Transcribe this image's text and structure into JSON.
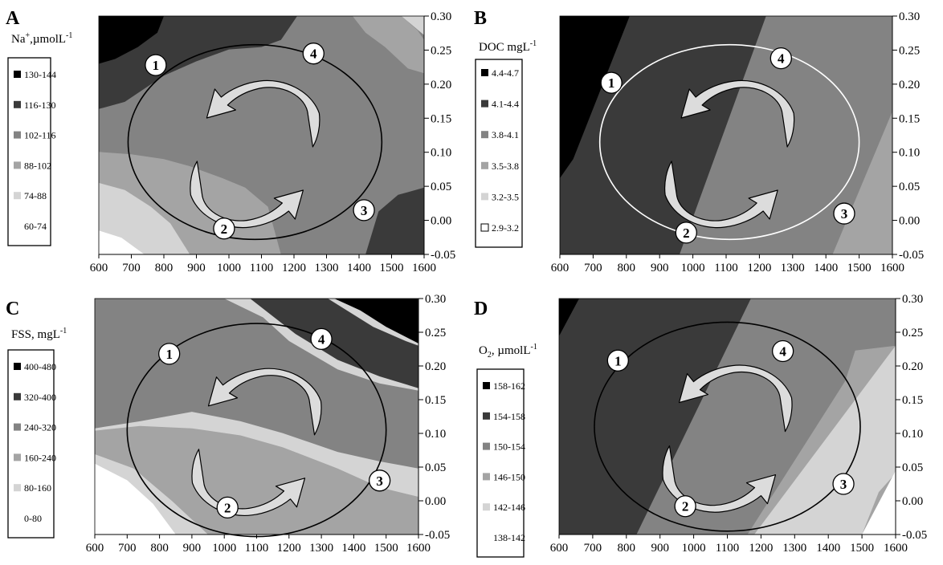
{
  "figure": {
    "background": "#ffffff"
  },
  "colors": {
    "band": [
      "#ffffff",
      "#d4d4d4",
      "#a4a4a4",
      "#838383",
      "#3a3a3a",
      "#000000"
    ],
    "arrow_fill": "#dcdcdc",
    "marker_fill": "#ffffff"
  },
  "chart_data": [
    {
      "type": "contour",
      "panel_letter": "A",
      "legend_title": "Na+,µmolL-1",
      "legend_title_base": "Na",
      "legend_title_sup": "+",
      "legend_title_mid": ",µmolL",
      "legend_title_sup2": "-1",
      "legend_entries": [
        "130-144",
        "116-130",
        "102-116",
        "88-102",
        "74-88",
        "60-74"
      ],
      "x_ticks": [
        "600",
        "700",
        "800",
        "900",
        "1000",
        "1100",
        "1200",
        "1300",
        "1400",
        "1500",
        "1600"
      ],
      "y_ticks": [
        "0.30",
        "0.25",
        "0.20",
        "0.15",
        "0.10",
        "0.05",
        "0.00",
        "-0.05"
      ],
      "xlim": [
        600,
        1600
      ],
      "ylim": [
        -0.05,
        0.3
      ],
      "y_axis_side": "right",
      "grid": false,
      "loop": {
        "center_x": 1080,
        "center_y": 0.115,
        "radius_x": 390,
        "radius_y": 0.143,
        "color": "#000000"
      },
      "markers": [
        {
          "label": "1",
          "x": 775,
          "y": 0.228
        },
        {
          "label": "4",
          "x": 1260,
          "y": 0.245
        },
        {
          "label": "3",
          "x": 1415,
          "y": 0.015
        },
        {
          "label": "2",
          "x": 985,
          "y": -0.012
        }
      ]
    },
    {
      "type": "contour",
      "panel_letter": "B",
      "legend_title": "DOC mgL-1",
      "legend_title_base": "DOC mgL",
      "legend_title_sup": "-1",
      "legend_entries": [
        "4.4-4.7",
        "4.1-4.4",
        "3.8-4.1",
        "3.5-3.8",
        "3.2-3.5",
        "2.9-3.2"
      ],
      "x_ticks": [
        "600",
        "700",
        "800",
        "900",
        "1000",
        "1100",
        "1200",
        "1300",
        "1400",
        "1500",
        "1600"
      ],
      "y_ticks": [
        "0.30",
        "0.25",
        "0.20",
        "0.15",
        "0.10",
        "0.05",
        "0.00",
        "-0.05"
      ],
      "xlim": [
        600,
        1600
      ],
      "ylim": [
        -0.05,
        0.3
      ],
      "y_axis_side": "right",
      "grid": false,
      "loop": {
        "center_x": 1110,
        "center_y": 0.115,
        "radius_x": 390,
        "radius_y": 0.143,
        "color": "#ffffff"
      },
      "markers": [
        {
          "label": "1",
          "x": 755,
          "y": 0.202
        },
        {
          "label": "4",
          "x": 1265,
          "y": 0.238
        },
        {
          "label": "3",
          "x": 1455,
          "y": 0.01
        },
        {
          "label": "2",
          "x": 980,
          "y": -0.018
        }
      ]
    },
    {
      "type": "contour",
      "panel_letter": "C",
      "legend_title": "FSS, mgL-1",
      "legend_title_base": "FSS, mgL",
      "legend_title_sup": "-1",
      "legend_entries": [
        "400-480",
        "320-400",
        "240-320",
        "160-240",
        "80-160",
        "0-80"
      ],
      "x_ticks": [
        "600",
        "700",
        "800",
        "900",
        "1000",
        "1100",
        "1200",
        "1300",
        "1400",
        "1500",
        "1600"
      ],
      "y_ticks": [
        "0.30",
        "0.25",
        "0.20",
        "0.15",
        "0.10",
        "0.05",
        "0.00",
        "-0.05"
      ],
      "xlim": [
        600,
        1600
      ],
      "ylim": [
        -0.05,
        0.3
      ],
      "y_axis_side": "right",
      "grid": false,
      "loop": {
        "center_x": 1100,
        "center_y": 0.105,
        "radius_x": 400,
        "radius_y": 0.158,
        "color": "#000000"
      },
      "markers": [
        {
          "label": "1",
          "x": 830,
          "y": 0.218
        },
        {
          "label": "4",
          "x": 1300,
          "y": 0.24
        },
        {
          "label": "3",
          "x": 1480,
          "y": 0.03
        },
        {
          "label": "2",
          "x": 1010,
          "y": -0.01
        }
      ]
    },
    {
      "type": "contour",
      "panel_letter": "D",
      "legend_title": "O2, µmolL-1",
      "legend_title_base": "O",
      "legend_title_sub": "2",
      "legend_title_mid": ", µmolL",
      "legend_title_sup": "-1",
      "legend_entries": [
        "158-162",
        "154-158",
        "150-154",
        "146-150",
        "142-146",
        "138-142"
      ],
      "x_ticks": [
        "600",
        "700",
        "800",
        "900",
        "1000",
        "1100",
        "1200",
        "1300",
        "1400",
        "1500",
        "1600"
      ],
      "y_ticks": [
        "0.30",
        "0.25",
        "0.20",
        "0.15",
        "0.10",
        "0.05",
        "0.00",
        "-0.05"
      ],
      "xlim": [
        600,
        1600
      ],
      "ylim": [
        -0.05,
        0.3
      ],
      "y_axis_side": "right",
      "grid": false,
      "loop": {
        "center_x": 1100,
        "center_y": 0.11,
        "radius_x": 395,
        "radius_y": 0.155,
        "color": "#000000"
      },
      "markers": [
        {
          "label": "1",
          "x": 775,
          "y": 0.208
        },
        {
          "label": "4",
          "x": 1265,
          "y": 0.222
        },
        {
          "label": "3",
          "x": 1445,
          "y": 0.025
        },
        {
          "label": "2",
          "x": 975,
          "y": -0.008
        }
      ]
    }
  ]
}
